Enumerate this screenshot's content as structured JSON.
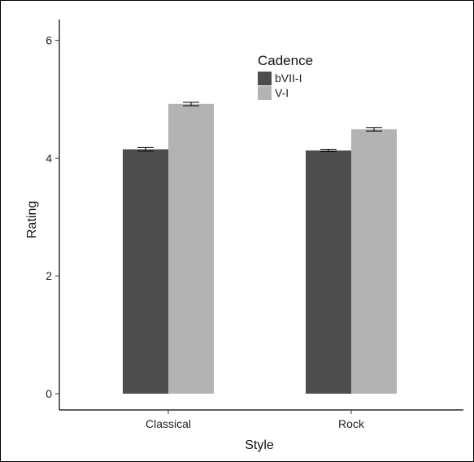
{
  "chart_data": {
    "type": "bar",
    "xlabel": "Style",
    "ylabel": "Rating",
    "categories": [
      "Classical",
      "Rock"
    ],
    "ylim": [
      0,
      6.2
    ],
    "yticks": [
      0,
      2,
      4,
      6
    ],
    "legend": {
      "title": "Cadence",
      "placement": "top-center"
    },
    "series": [
      {
        "name": "bVII-I",
        "color": "#4d4d4d",
        "values": [
          4.15,
          4.13
        ],
        "errors": [
          0.03,
          0.02
        ]
      },
      {
        "name": "V-I",
        "color": "#b3b3b3",
        "values": [
          4.92,
          4.49
        ],
        "errors": [
          0.03,
          0.03
        ]
      }
    ],
    "grid": false
  }
}
